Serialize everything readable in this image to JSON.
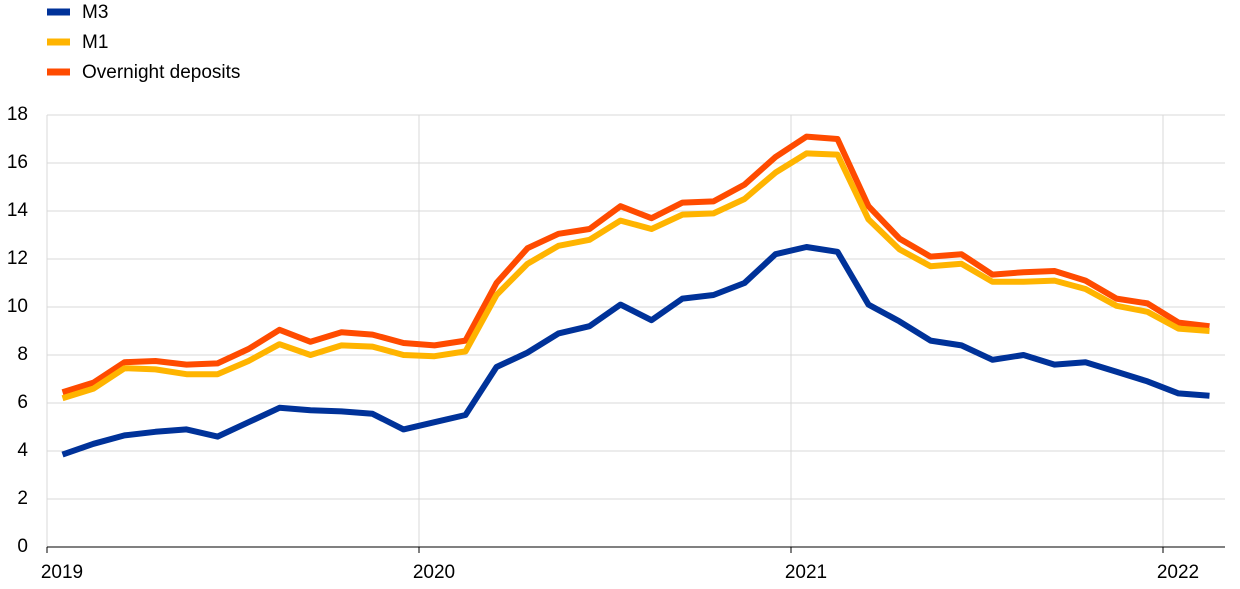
{
  "chart_data": {
    "type": "line",
    "categories": [
      null,
      null,
      null,
      null,
      null,
      null,
      null,
      null,
      null,
      null,
      null,
      null,
      null,
      null,
      null,
      null,
      null,
      null,
      null,
      null,
      null,
      null,
      null,
      null,
      null,
      null,
      null,
      null,
      null,
      null,
      null,
      null,
      null,
      null,
      null,
      null,
      null,
      null
    ],
    "xlim": [
      0,
      38
    ],
    "xticks": [
      {
        "value": 0,
        "label": "2019"
      },
      {
        "value": 12,
        "label": "2020"
      },
      {
        "value": 24,
        "label": "2021"
      },
      {
        "value": 36,
        "label": "2022"
      }
    ],
    "ylim": [
      0,
      18
    ],
    "yticks": [
      0,
      2,
      4,
      6,
      8,
      10,
      12,
      14,
      16,
      18
    ],
    "grid": true,
    "legend": "top-left",
    "series": [
      {
        "name": "M3",
        "color": "#003299",
        "values": [
          3.85,
          4.3,
          4.65,
          4.8,
          4.9,
          4.6,
          5.2,
          5.8,
          5.7,
          5.65,
          5.55,
          4.9,
          5.2,
          5.5,
          7.5,
          8.1,
          8.9,
          9.2,
          10.1,
          9.45,
          10.35,
          10.5,
          11.0,
          12.2,
          12.5,
          12.3,
          10.1,
          9.4,
          8.6,
          8.4,
          7.8,
          8.0,
          7.6,
          7.7,
          7.3,
          6.9,
          6.4,
          6.3
        ]
      },
      {
        "name": "M1",
        "color": "#ffb400",
        "values": [
          6.2,
          6.6,
          7.45,
          7.4,
          7.2,
          7.2,
          7.75,
          8.45,
          8.0,
          8.4,
          8.35,
          8.0,
          7.95,
          8.15,
          10.5,
          11.8,
          12.55,
          12.8,
          13.6,
          13.25,
          13.85,
          13.9,
          14.5,
          15.6,
          16.4,
          16.35,
          13.65,
          12.4,
          11.7,
          11.8,
          11.05,
          11.05,
          11.1,
          10.75,
          10.05,
          9.8,
          9.1,
          9.0
        ]
      },
      {
        "name": "Overnight deposits",
        "color": "#ff4b00",
        "values": [
          6.45,
          6.85,
          7.7,
          7.75,
          7.6,
          7.65,
          8.25,
          9.05,
          8.55,
          8.95,
          8.85,
          8.5,
          8.4,
          8.6,
          11.0,
          12.45,
          13.05,
          13.25,
          14.2,
          13.7,
          14.35,
          14.4,
          15.1,
          16.25,
          17.1,
          17.0,
          14.2,
          12.85,
          12.1,
          12.2,
          11.35,
          11.45,
          11.5,
          11.1,
          10.35,
          10.15,
          9.35,
          9.2
        ]
      }
    ]
  }
}
